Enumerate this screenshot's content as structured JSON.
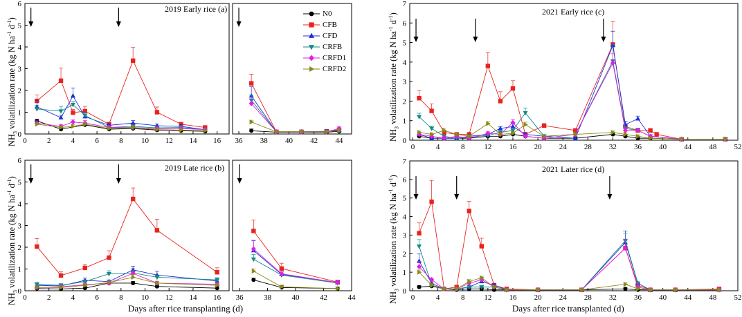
{
  "figure": {
    "axis_x_label_left": "Days after rice transplanting (d)",
    "axis_x_label_right": "Days after rice transplanted (d)",
    "axis_y_label": "NH3 volatilization rate (kg N ha-1 d-1)",
    "axis_y_label_parts": {
      "a": "NH",
      "b": "3",
      "c": " volatilization rate (kg N ha",
      "d": "-1",
      "e": " d",
      "f": "-1",
      "g": ")"
    }
  },
  "colors": {
    "N0": "#000000",
    "CFB": "#e8231f",
    "CFD": "#1a2fd8",
    "CRFB": "#138a8a",
    "CRFD1": "#e21ee2",
    "CRFD2": "#8a8a14"
  },
  "legend": [
    "N0",
    "CFB",
    "CFD",
    "CRFB",
    "CRFD1",
    "CRFD2"
  ],
  "chart_data": [
    {
      "id": "a",
      "type": "line",
      "title": "2019 Early rice (a)",
      "broken_axis": true,
      "seg1_range": [
        0,
        17
      ],
      "seg1_ticks": [
        0,
        2,
        4,
        6,
        8,
        10,
        12,
        14,
        16
      ],
      "seg2_range": [
        35.5,
        45
      ],
      "seg2_ticks": [
        36,
        38,
        40,
        42,
        44
      ],
      "ylim": [
        0,
        6
      ],
      "yticks": [
        0,
        1,
        2,
        3,
        4,
        5,
        6
      ],
      "fert_arrows_days": [
        0.5,
        7.8,
        36
      ],
      "series": [
        {
          "name": "N0",
          "x1": [
            1,
            3,
            5,
            7,
            9,
            11,
            13,
            15
          ],
          "y1": [
            0.6,
            0.22,
            0.42,
            0.22,
            0.25,
            0.18,
            0.15,
            0.12
          ],
          "x2": [
            37,
            39,
            41,
            43,
            44
          ],
          "y2": [
            0.15,
            0.08,
            0.08,
            0.08,
            0.12
          ]
        },
        {
          "name": "CFB",
          "x1": [
            1,
            3,
            4,
            5,
            7,
            9,
            11,
            13,
            15
          ],
          "y1": [
            1.52,
            2.45,
            0.98,
            1.05,
            0.45,
            3.37,
            1.0,
            0.45,
            0.3
          ],
          "x2": [
            37,
            39,
            41,
            43,
            44
          ],
          "y2": [
            2.33,
            0.1,
            0.1,
            0.12,
            0.2
          ]
        },
        {
          "name": "CFD",
          "x1": [
            1,
            3,
            4,
            5,
            7,
            9,
            11,
            13,
            15
          ],
          "y1": [
            1.25,
            0.75,
            1.75,
            0.8,
            0.4,
            0.5,
            0.38,
            0.35,
            0.2
          ],
          "x2": [
            37,
            39,
            41,
            43,
            44
          ],
          "y2": [
            1.75,
            0.1,
            0.1,
            0.12,
            0.18
          ]
        },
        {
          "name": "CRFB",
          "x1": [
            1,
            3,
            4,
            5,
            7,
            9,
            11,
            13,
            15
          ],
          "y1": [
            1.15,
            1.05,
            1.35,
            0.85,
            0.3,
            0.35,
            0.28,
            0.3,
            0.2
          ],
          "x2": [
            37,
            39,
            41,
            43,
            44
          ],
          "y2": [
            1.55,
            0.1,
            0.1,
            0.1,
            0.15
          ]
        },
        {
          "name": "CRFD1",
          "x1": [
            1,
            3,
            4,
            5,
            7,
            9,
            11,
            13,
            15
          ],
          "y1": [
            0.5,
            0.35,
            0.55,
            0.5,
            0.3,
            0.3,
            0.25,
            0.25,
            0.2
          ],
          "x2": [
            37,
            39,
            41,
            43,
            44
          ],
          "y2": [
            1.4,
            0.1,
            0.1,
            0.1,
            0.25
          ]
        },
        {
          "name": "CRFD2",
          "x1": [
            1,
            3,
            4,
            5,
            7,
            9,
            11,
            13,
            15
          ],
          "y1": [
            0.45,
            0.3,
            0.35,
            0.45,
            0.25,
            0.3,
            0.2,
            0.18,
            0.15
          ],
          "x2": [
            37,
            39,
            41,
            43,
            44
          ],
          "y2": [
            0.55,
            0.1,
            0.1,
            0.1,
            0.15
          ]
        }
      ]
    },
    {
      "id": "b",
      "type": "line",
      "title": "2019 Late rice (b)",
      "broken_axis": true,
      "seg1_range": [
        0,
        17
      ],
      "seg1_ticks": [
        0,
        2,
        4,
        6,
        8,
        10,
        12,
        14,
        16
      ],
      "seg2_range": [
        35.5,
        44
      ],
      "seg2_ticks": [
        36,
        38,
        40,
        42,
        44
      ],
      "ylim": [
        0,
        6
      ],
      "yticks": [
        0,
        1,
        2,
        3,
        4,
        5,
        6
      ],
      "fert_arrows_days": [
        0.5,
        7.8,
        36
      ],
      "series": [
        {
          "name": "N0",
          "x1": [
            1,
            3,
            5,
            7,
            9,
            11,
            16
          ],
          "y1": [
            0.1,
            0.08,
            0.12,
            0.35,
            0.35,
            0.2,
            0.12
          ],
          "x2": [
            37,
            39,
            43
          ],
          "y2": [
            0.5,
            0.15,
            0.1
          ]
        },
        {
          "name": "CFB",
          "x1": [
            1,
            3,
            5,
            7,
            9,
            11,
            16
          ],
          "y1": [
            2.03,
            0.7,
            1.05,
            1.52,
            4.22,
            2.78,
            0.85
          ],
          "x2": [
            37,
            39,
            43
          ],
          "y2": [
            2.75,
            1.02,
            0.4
          ]
        },
        {
          "name": "CFD",
          "x1": [
            1,
            3,
            5,
            7,
            9,
            11,
            16
          ],
          "y1": [
            0.25,
            0.22,
            0.48,
            0.42,
            0.96,
            0.72,
            0.45
          ],
          "x2": [
            37,
            39,
            43
          ],
          "y2": [
            1.85,
            0.75,
            0.38
          ]
        },
        {
          "name": "CRFB",
          "x1": [
            1,
            3,
            5,
            7,
            9,
            11,
            16
          ],
          "y1": [
            0.3,
            0.25,
            0.42,
            0.78,
            0.82,
            0.62,
            0.5
          ],
          "x2": [
            37,
            39,
            43
          ],
          "y2": [
            1.45,
            0.72,
            0.35
          ]
        },
        {
          "name": "CRFD1",
          "x1": [
            1,
            3,
            5,
            7,
            9,
            11,
            16
          ],
          "y1": [
            0.15,
            0.18,
            0.28,
            0.35,
            0.8,
            0.35,
            0.3
          ],
          "x2": [
            37,
            39,
            43
          ],
          "y2": [
            1.92,
            0.78,
            0.38
          ]
        },
        {
          "name": "CRFD2",
          "x1": [
            1,
            3,
            5,
            7,
            9,
            11,
            16
          ],
          "y1": [
            0.15,
            0.15,
            0.25,
            0.38,
            0.62,
            0.35,
            0.25
          ],
          "x2": [
            37,
            39,
            43
          ],
          "y2": [
            0.9,
            0.18,
            0.1
          ]
        }
      ]
    },
    {
      "id": "c",
      "type": "line",
      "title": "2021 Early rice (c)",
      "broken_axis": false,
      "xlim": [
        -0.5,
        52
      ],
      "xticks": [
        0,
        4,
        8,
        12,
        16,
        20,
        24,
        28,
        32,
        36,
        40,
        44,
        48,
        52
      ],
      "ylim": [
        0,
        7
      ],
      "yticks": [
        0,
        1,
        2,
        3,
        4,
        5,
        6,
        7
      ],
      "fert_arrows_days": [
        0.5,
        10,
        30.5
      ],
      "series": [
        {
          "name": "N0",
          "x": [
            1,
            3,
            5,
            7,
            9,
            12,
            14,
            16,
            18,
            21,
            26,
            32,
            34,
            36,
            38,
            43,
            50
          ],
          "y": [
            0.2,
            0.1,
            0.1,
            0.1,
            0.1,
            0.2,
            0.2,
            0.3,
            0.2,
            0.1,
            0.1,
            0.3,
            0.2,
            0.1,
            0.1,
            0.05,
            0.05
          ]
        },
        {
          "name": "CFB",
          "x": [
            1,
            3,
            5,
            7,
            9,
            12,
            14,
            16,
            18,
            21,
            26,
            32,
            34,
            36,
            38,
            39,
            43,
            50
          ],
          "y": [
            2.15,
            1.5,
            0.4,
            0.3,
            0.3,
            3.8,
            2.0,
            2.65,
            0.3,
            0.75,
            0.5,
            4.9,
            0.7,
            0.5,
            0.5,
            0.3,
            0.05,
            0.05
          ]
        },
        {
          "name": "CFD",
          "x": [
            1,
            3,
            5,
            7,
            9,
            12,
            14,
            16,
            18,
            21,
            26,
            32,
            34,
            36,
            38,
            43,
            50
          ],
          "y": [
            0.3,
            0.1,
            0.1,
            0.1,
            0.2,
            0.3,
            0.6,
            0.7,
            0.3,
            0.2,
            0.1,
            4.85,
            0.8,
            1.1,
            0.2,
            0.05,
            0.05
          ]
        },
        {
          "name": "CRFB",
          "x": [
            1,
            3,
            5,
            7,
            9,
            12,
            14,
            16,
            18,
            21,
            26,
            32,
            34,
            36,
            38,
            43,
            50
          ],
          "y": [
            1.2,
            0.6,
            0.2,
            0.1,
            0.15,
            0.25,
            0.4,
            0.5,
            1.4,
            0.2,
            0.3,
            4.05,
            0.6,
            0.5,
            0.2,
            0.05,
            0.05
          ]
        },
        {
          "name": "CRFD1",
          "x": [
            1,
            3,
            5,
            7,
            9,
            12,
            14,
            16,
            18,
            21,
            26,
            32,
            34,
            36,
            38,
            43,
            50
          ],
          "y": [
            0.3,
            0.2,
            0.1,
            0.2,
            0.1,
            0.35,
            0.3,
            0.9,
            0.2,
            0.1,
            0.3,
            3.95,
            0.5,
            0.5,
            0.2,
            0.05,
            0.05
          ]
        },
        {
          "name": "CRFD2",
          "x": [
            1,
            3,
            5,
            7,
            9,
            12,
            14,
            16,
            18,
            21,
            26,
            32,
            34,
            36,
            38,
            43,
            50
          ],
          "y": [
            0.4,
            0.3,
            0.5,
            0.3,
            0.2,
            0.85,
            0.3,
            0.35,
            0.8,
            0.2,
            0.3,
            0.4,
            0.3,
            0.2,
            0.1,
            0.05,
            0.05
          ]
        }
      ]
    },
    {
      "id": "d",
      "type": "line",
      "title": "2021 Later rice (d)",
      "broken_axis": false,
      "xlim": [
        -0.5,
        52
      ],
      "xticks": [
        0,
        4,
        8,
        12,
        16,
        20,
        24,
        28,
        32,
        36,
        40,
        44,
        48,
        52
      ],
      "ylim": [
        0,
        7
      ],
      "yticks": [
        0,
        1,
        2,
        3,
        4,
        5,
        6,
        7
      ],
      "fert_arrows_days": [
        0.5,
        7,
        31.5
      ],
      "series": [
        {
          "name": "N0",
          "x": [
            1,
            3,
            5,
            7,
            9,
            11,
            13,
            15,
            20,
            27,
            34,
            36,
            38,
            42,
            49
          ],
          "y": [
            0.2,
            0.25,
            0.1,
            0.05,
            0.1,
            0.1,
            0.05,
            0.05,
            0.05,
            0.05,
            0.1,
            0.05,
            0.05,
            0.05,
            0.05
          ]
        },
        {
          "name": "CFB",
          "x": [
            1,
            3,
            5,
            7,
            9,
            11,
            13,
            15,
            20,
            27,
            34,
            36,
            38,
            42,
            49
          ],
          "y": [
            3.1,
            4.8,
            0.1,
            0.2,
            4.3,
            2.4,
            0.3,
            0.1,
            0.05,
            0.05,
            2.3,
            0.3,
            0.05,
            0.05,
            0.1
          ]
        },
        {
          "name": "CFD",
          "x": [
            1,
            3,
            5,
            7,
            9,
            11,
            13,
            15,
            20,
            27,
            34,
            36,
            38,
            42,
            49
          ],
          "y": [
            1.6,
            0.4,
            0.1,
            0.1,
            0.2,
            0.5,
            0.3,
            0.05,
            0.05,
            0.05,
            2.6,
            0.4,
            0.05,
            0.05,
            0.05
          ]
        },
        {
          "name": "CRFB",
          "x": [
            1,
            3,
            5,
            7,
            9,
            11,
            13,
            15,
            20,
            27,
            34,
            36,
            38,
            42,
            49
          ],
          "y": [
            2.4,
            0.3,
            0.1,
            0.1,
            0.2,
            0.2,
            0.2,
            0.05,
            0.05,
            0.05,
            2.7,
            0.4,
            0.05,
            0.05,
            0.05
          ]
        },
        {
          "name": "CRFD1",
          "x": [
            1,
            3,
            5,
            7,
            9,
            11,
            13,
            15,
            20,
            27,
            34,
            36,
            38,
            42,
            49
          ],
          "y": [
            1.3,
            0.6,
            0.1,
            0.1,
            0.4,
            0.6,
            0.2,
            0.05,
            0.05,
            0.05,
            2.3,
            0.2,
            0.05,
            0.05,
            0.05
          ]
        },
        {
          "name": "CRFD2",
          "x": [
            1,
            3,
            5,
            7,
            9,
            11,
            13,
            15,
            20,
            27,
            34,
            36,
            38,
            42,
            49
          ],
          "y": [
            1.0,
            0.3,
            0.1,
            0.1,
            0.5,
            0.7,
            0.2,
            0.05,
            0.05,
            0.05,
            0.35,
            0.1,
            0.05,
            0.05,
            0.05
          ]
        }
      ]
    }
  ]
}
